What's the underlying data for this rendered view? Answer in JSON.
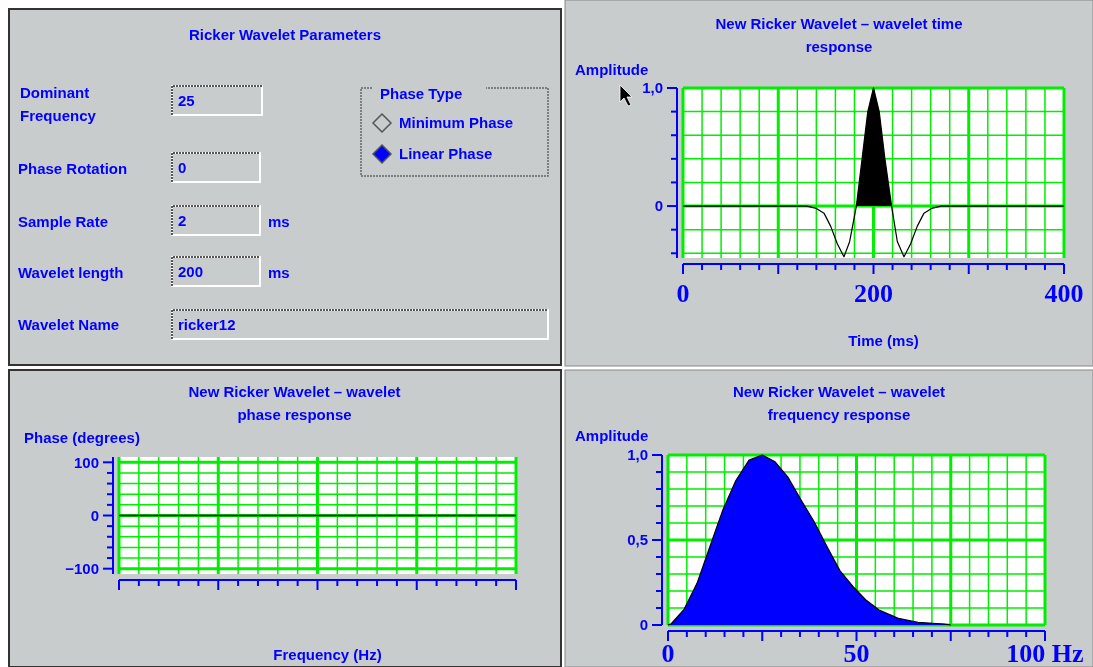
{
  "chart_data": [
    {
      "type": "other",
      "title": "Ricker Wavelet Parameters",
      "annotations": [
        "Dominant Frequency",
        "25",
        "Phase Rotation",
        "0",
        "Sample Rate",
        "2",
        "ms",
        "Wavelet length",
        "200",
        "ms",
        "Wavelet Name",
        "ricker12",
        "Phase Type",
        "Minimum Phase",
        "Linear Phase"
      ]
    },
    {
      "type": "area",
      "title": "New Ricker Wavelet – wavelet time response",
      "xlabel": "Time (ms)",
      "ylabel": "Amplitude",
      "color": "#000000",
      "grid": true,
      "x": [
        0,
        130,
        140,
        148,
        155,
        162,
        169,
        175,
        182,
        188,
        194,
        200,
        206,
        212,
        219,
        225,
        232,
        239,
        246,
        253,
        261,
        271,
        400
      ],
      "values": [
        0,
        0,
        -0.02,
        -0.06,
        -0.17,
        -0.32,
        -0.43,
        -0.3,
        0,
        0.4,
        0.8,
        1.0,
        0.8,
        0.4,
        0,
        -0.3,
        -0.43,
        -0.32,
        -0.17,
        -0.06,
        -0.02,
        0,
        0
      ],
      "xlim": [
        0,
        400
      ],
      "xticks": [
        0,
        {
          "value": 20,
          "label": null
        },
        {
          "value": 40,
          "label": null
        },
        {
          "value": 60,
          "label": null
        },
        {
          "value": 80,
          "label": null
        },
        {
          "value": 100,
          "label": null
        },
        {
          "value": 120,
          "label": null
        },
        {
          "value": 140,
          "label": null
        },
        {
          "value": 160,
          "label": null
        },
        {
          "value": 180,
          "label": null
        },
        200,
        {
          "value": 220,
          "label": null
        },
        {
          "value": 240,
          "label": null
        },
        {
          "value": 260,
          "label": null
        },
        {
          "value": 280,
          "label": null
        },
        {
          "value": 300,
          "label": null
        },
        {
          "value": 320,
          "label": null
        },
        {
          "value": 340,
          "label": null
        },
        {
          "value": 360,
          "label": null
        },
        {
          "value": 380,
          "label": null
        },
        400
      ],
      "ylim": [
        -0.44,
        1
      ],
      "yticks": [
        {
          "value": -0.4,
          "label": null
        },
        {
          "value": -0.2,
          "label": null
        },
        {
          "value": 0,
          "label": "0"
        },
        {
          "value": 0.2,
          "label": null
        },
        {
          "value": 0.4,
          "label": null
        },
        {
          "value": 0.6,
          "label": null
        },
        {
          "value": 0.8,
          "label": null
        },
        {
          "value": 1,
          "label": "1,0"
        }
      ]
    },
    {
      "type": "line",
      "title": "New Ricker Wavelet – wavelet phase response",
      "xlabel": "Frequency (Hz)",
      "ylabel": "Phase (degrees)",
      "color": "#000000",
      "grid": true,
      "categories": [
        null,
        null,
        null,
        null,
        null,
        null,
        null,
        null,
        null,
        null,
        null,
        null,
        null,
        null,
        null,
        null,
        null,
        null,
        null,
        null,
        null
      ],
      "values": [
        0,
        0,
        0,
        0,
        0,
        0,
        0,
        0,
        0,
        0,
        0,
        0,
        0,
        0,
        0,
        0,
        0,
        0,
        0,
        0,
        0
      ],
      "ylim": [
        -110,
        110
      ],
      "yticks": [
        {
          "value": -100,
          "label": "−100"
        },
        {
          "value": -80,
          "label": null
        },
        {
          "value": -60,
          "label": null
        },
        {
          "value": -40,
          "label": null
        },
        {
          "value": -20,
          "label": null
        },
        {
          "value": 0,
          "label": "0"
        },
        {
          "value": 20,
          "label": null
        },
        {
          "value": 40,
          "label": null
        },
        {
          "value": 60,
          "label": null
        },
        {
          "value": 80,
          "label": null
        },
        100
      ],
      "tick_labels": "y"
    },
    {
      "type": "area",
      "title": "New Ricker Wavelet – wavelet frequency response",
      "ylabel": "Amplitude",
      "color": "#0000ff",
      "grid": true,
      "x": [
        0,
        0.8,
        4.2,
        7.7,
        11.1,
        14.6,
        18,
        21.5,
        25,
        28.4,
        31.8,
        35.3,
        38.7,
        42.2,
        45.6,
        49.1,
        52.5,
        56,
        61.1,
        66.3,
        73.2,
        75
      ],
      "values": [
        0,
        0.006,
        0.09,
        0.245,
        0.46,
        0.68,
        0.85,
        0.97,
        1.0,
        0.96,
        0.87,
        0.735,
        0.61,
        0.46,
        0.32,
        0.225,
        0.147,
        0.088,
        0.039,
        0.016,
        0.006,
        0
      ],
      "xlim": [
        0,
        100
      ],
      "xticks": [
        0,
        {
          "value": 5,
          "label": null
        },
        {
          "value": 10,
          "label": null
        },
        {
          "value": 15,
          "label": null
        },
        {
          "value": 20,
          "label": null
        },
        {
          "value": 25,
          "label": null
        },
        {
          "value": 30,
          "label": null
        },
        {
          "value": 35,
          "label": null
        },
        {
          "value": 40,
          "label": null
        },
        {
          "value": 45,
          "label": null
        },
        50,
        {
          "value": 55,
          "label": null
        },
        {
          "value": 60,
          "label": null
        },
        {
          "value": 65,
          "label": null
        },
        {
          "value": 70,
          "label": null
        },
        {
          "value": 75,
          "label": null
        },
        {
          "value": 80,
          "label": null
        },
        {
          "value": 85,
          "label": null
        },
        {
          "value": 90,
          "label": null
        },
        {
          "value": 95,
          "label": null
        },
        {
          "value": 100,
          "label": "100 Hz"
        }
      ],
      "ylim": [
        0,
        1
      ],
      "yticks": [
        {
          "value": 0,
          "label": "0"
        },
        {
          "value": 0.1,
          "label": null
        },
        {
          "value": 0.2,
          "label": null
        },
        {
          "value": 0.3,
          "label": null
        },
        {
          "value": 0.4,
          "label": null
        },
        {
          "value": 0.5,
          "label": "0,5"
        },
        {
          "value": 0.6,
          "label": null
        },
        {
          "value": 0.7,
          "label": null
        },
        {
          "value": 0.8,
          "label": null
        },
        {
          "value": 0.9,
          "label": null
        },
        {
          "value": 1,
          "label": "1,0"
        }
      ]
    }
  ]
}
